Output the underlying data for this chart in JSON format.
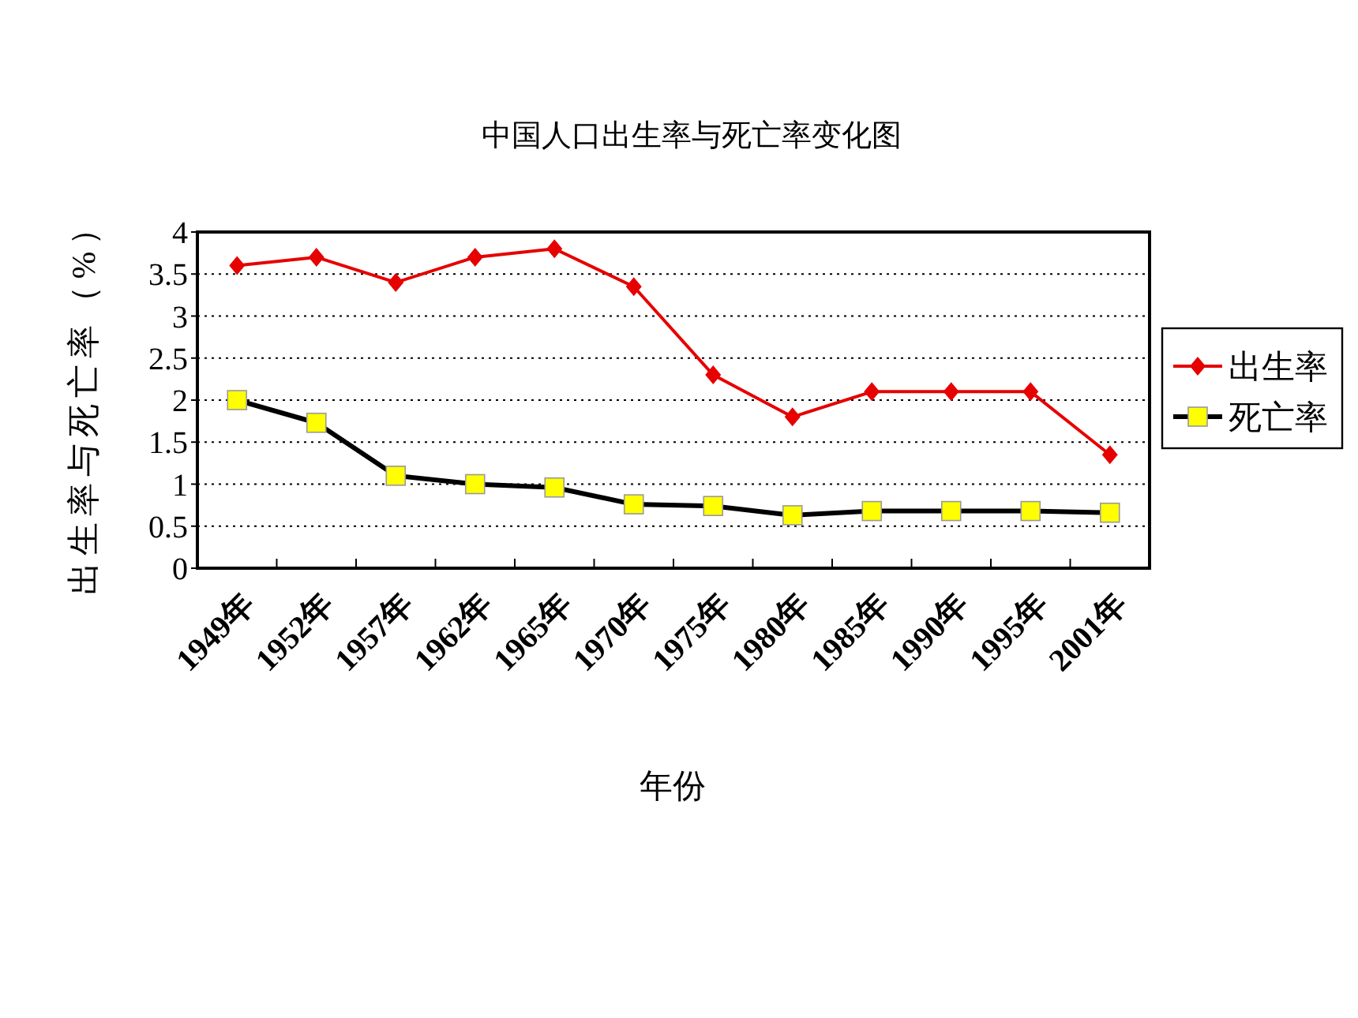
{
  "chart_data": {
    "type": "line",
    "title": "中国人口出生率与死亡率变化图",
    "xlabel": "年份",
    "ylabel": "出生率与死亡率（%）",
    "categories": [
      "1949年",
      "1952年",
      "1957年",
      "1962年",
      "1965年",
      "1970年",
      "1975年",
      "1980年",
      "1985年",
      "1990年",
      "1995年",
      "2001年"
    ],
    "series": [
      {
        "name": "出生率",
        "color": "#e60000",
        "marker": "diamond",
        "values": [
          3.6,
          3.7,
          3.4,
          3.7,
          3.8,
          3.35,
          2.3,
          1.8,
          2.1,
          2.1,
          2.1,
          1.35
        ]
      },
      {
        "name": "死亡率",
        "color": "#000000",
        "marker": "square",
        "values": [
          2.0,
          1.73,
          1.1,
          1.0,
          0.96,
          0.76,
          0.74,
          0.63,
          0.68,
          0.68,
          0.68,
          0.66
        ]
      }
    ],
    "ylim": [
      0,
      4
    ],
    "yticks": [
      0,
      0.5,
      1,
      1.5,
      2,
      2.5,
      3,
      3.5,
      4
    ],
    "grid": "y",
    "legend": "right"
  }
}
